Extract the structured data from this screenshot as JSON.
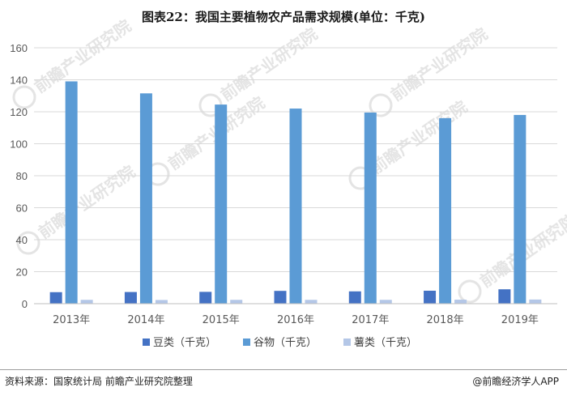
{
  "chart_data": {
    "type": "bar",
    "title": "图表22：我国主要植物农产品需求规模(单位：千克)",
    "categories": [
      "2013年",
      "2014年",
      "2015年",
      "2016年",
      "2017年",
      "2018年",
      "2019年"
    ],
    "series": [
      {
        "name": "豆类（千克）",
        "color": "#4472c4",
        "values": [
          7.2,
          7.3,
          7.4,
          8.0,
          7.7,
          8.1,
          9.0
        ]
      },
      {
        "name": "谷物（千克）",
        "color": "#5b9bd5",
        "values": [
          139,
          131.5,
          124.5,
          122,
          119.5,
          116,
          118
        ]
      },
      {
        "name": "薯类（千克）",
        "color": "#b4c7e7",
        "values": [
          2.4,
          2.3,
          2.4,
          2.4,
          2.4,
          2.5,
          2.6
        ]
      }
    ],
    "ylim": [
      0,
      160
    ],
    "yticks": [
      0,
      20,
      40,
      60,
      80,
      100,
      120,
      140,
      160
    ],
    "grid": true,
    "legend": "bottom"
  },
  "footer": {
    "source": "资料来源：国家统计局 前瞻产业研究院整理",
    "credit": "@前瞻经济学人APP"
  },
  "watermark": {
    "text": "前瞻产业研究院",
    "icon": "qianzhan-logo-icon"
  }
}
